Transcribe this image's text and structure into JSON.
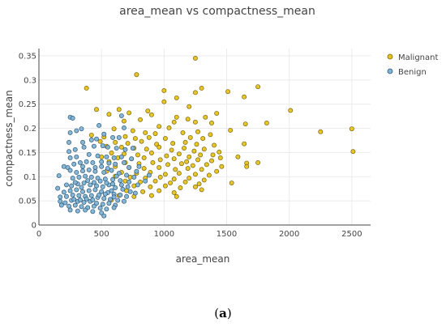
{
  "caption": {
    "open": "(",
    "letter": "a",
    "close": ")"
  },
  "chart_data": {
    "type": "scatter",
    "title": "area_mean vs compactness_mean",
    "xlabel": "area_mean",
    "ylabel": "compactness_mean",
    "xlim": [
      0,
      2650
    ],
    "ylim": [
      0,
      0.365
    ],
    "x_ticks": [
      0,
      500,
      1000,
      1500,
      2000,
      2500
    ],
    "x_tick_labels": [
      "0",
      "500",
      "1000",
      "1500",
      "2000",
      "2500"
    ],
    "y_ticks": [
      0,
      0.05,
      0.1,
      0.15,
      0.2,
      0.25,
      0.3,
      0.35
    ],
    "y_tick_labels": [
      "0",
      "0.05",
      "0.1",
      "0.15",
      "0.2",
      "0.25",
      "0.3",
      "0.35"
    ],
    "grid": true,
    "legend_position": "top-right",
    "series": [
      {
        "name": "Malignant",
        "color": "#e6c31e",
        "edge": "#7a6508",
        "points": [
          [
            1250,
            0.345
          ],
          [
            780,
            0.311
          ],
          [
            380,
            0.283
          ],
          [
            1750,
            0.286
          ],
          [
            1000,
            0.278
          ],
          [
            1300,
            0.283
          ],
          [
            1250,
            0.274
          ],
          [
            1510,
            0.276
          ],
          [
            1100,
            0.263
          ],
          [
            1640,
            0.265
          ],
          [
            1200,
            0.245
          ],
          [
            460,
            0.239
          ],
          [
            870,
            0.236
          ],
          [
            1000,
            0.255
          ],
          [
            2010,
            0.237
          ],
          [
            640,
            0.239
          ],
          [
            720,
            0.232
          ],
          [
            900,
            0.228
          ],
          [
            1330,
            0.223
          ],
          [
            1420,
            0.231
          ],
          [
            1100,
            0.223
          ],
          [
            560,
            0.229
          ],
          [
            680,
            0.215
          ],
          [
            810,
            0.218
          ],
          [
            1080,
            0.213
          ],
          [
            1190,
            0.219
          ],
          [
            1250,
            0.213
          ],
          [
            1380,
            0.211
          ],
          [
            1650,
            0.209
          ],
          [
            1820,
            0.211
          ],
          [
            960,
            0.204
          ],
          [
            1040,
            0.201
          ],
          [
            1530,
            0.196
          ],
          [
            2500,
            0.199
          ],
          [
            2250,
            0.193
          ],
          [
            600,
            0.199
          ],
          [
            750,
            0.195
          ],
          [
            850,
            0.191
          ],
          [
            930,
            0.189
          ],
          [
            1150,
            0.191
          ],
          [
            1270,
            0.193
          ],
          [
            1370,
            0.187
          ],
          [
            420,
            0.186
          ],
          [
            520,
            0.182
          ],
          [
            690,
            0.183
          ],
          [
            770,
            0.179
          ],
          [
            880,
            0.181
          ],
          [
            1010,
            0.179
          ],
          [
            1210,
            0.181
          ],
          [
            1310,
            0.179
          ],
          [
            1640,
            0.168
          ],
          [
            490,
            0.173
          ],
          [
            610,
            0.171
          ],
          [
            710,
            0.169
          ],
          [
            820,
            0.173
          ],
          [
            940,
            0.167
          ],
          [
            1070,
            0.169
          ],
          [
            1170,
            0.171
          ],
          [
            1260,
            0.167
          ],
          [
            1400,
            0.165
          ],
          [
            2510,
            0.152
          ],
          [
            540,
            0.163
          ],
          [
            660,
            0.161
          ],
          [
            760,
            0.159
          ],
          [
            860,
            0.157
          ],
          [
            960,
            0.161
          ],
          [
            1060,
            0.155
          ],
          [
            1160,
            0.159
          ],
          [
            1240,
            0.153
          ],
          [
            1320,
            0.157
          ],
          [
            1440,
            0.151
          ],
          [
            1390,
            0.145
          ],
          [
            580,
            0.149
          ],
          [
            680,
            0.147
          ],
          [
            790,
            0.145
          ],
          [
            900,
            0.149
          ],
          [
            1020,
            0.143
          ],
          [
            1120,
            0.147
          ],
          [
            1200,
            0.141
          ],
          [
            1290,
            0.145
          ],
          [
            1450,
            0.139
          ],
          [
            1590,
            0.141
          ],
          [
            500,
            0.141
          ],
          [
            630,
            0.139
          ],
          [
            740,
            0.137
          ],
          [
            840,
            0.139
          ],
          [
            970,
            0.135
          ],
          [
            1080,
            0.137
          ],
          [
            1180,
            0.131
          ],
          [
            1270,
            0.135
          ],
          [
            1380,
            0.133
          ],
          [
            1660,
            0.128
          ],
          [
            1750,
            0.129
          ],
          [
            560,
            0.131
          ],
          [
            690,
            0.129
          ],
          [
            800,
            0.127
          ],
          [
            910,
            0.129
          ],
          [
            1030,
            0.125
          ],
          [
            1140,
            0.127
          ],
          [
            1230,
            0.123
          ],
          [
            1340,
            0.125
          ],
          [
            1660,
            0.121
          ],
          [
            1460,
            0.121
          ],
          [
            610,
            0.121
          ],
          [
            720,
            0.119
          ],
          [
            840,
            0.117
          ],
          [
            960,
            0.119
          ],
          [
            1090,
            0.115
          ],
          [
            1190,
            0.117
          ],
          [
            1300,
            0.115
          ],
          [
            1420,
            0.111
          ],
          [
            540,
            0.111
          ],
          [
            660,
            0.109
          ],
          [
            780,
            0.107
          ],
          [
            890,
            0.109
          ],
          [
            1010,
            0.105
          ],
          [
            1120,
            0.107
          ],
          [
            1250,
            0.105
          ],
          [
            1360,
            0.103
          ],
          [
            610,
            0.101
          ],
          [
            730,
            0.099
          ],
          [
            850,
            0.097
          ],
          [
            970,
            0.099
          ],
          [
            1080,
            0.095
          ],
          [
            1200,
            0.097
          ],
          [
            1320,
            0.093
          ],
          [
            690,
            0.091
          ],
          [
            810,
            0.089
          ],
          [
            930,
            0.091
          ],
          [
            1050,
            0.087
          ],
          [
            1170,
            0.089
          ],
          [
            1280,
            0.085
          ],
          [
            1540,
            0.087
          ],
          [
            760,
            0.081
          ],
          [
            890,
            0.079
          ],
          [
            1010,
            0.081
          ],
          [
            1130,
            0.077
          ],
          [
            1250,
            0.079
          ],
          [
            700,
            0.071
          ],
          [
            830,
            0.069
          ],
          [
            960,
            0.071
          ],
          [
            1080,
            0.067
          ],
          [
            1300,
            0.073
          ],
          [
            900,
            0.061
          ],
          [
            1100,
            0.059
          ],
          [
            640,
            0.061
          ],
          [
            760,
            0.059
          ],
          [
            580,
            0.052
          ]
        ]
      },
      {
        "name": "Benign",
        "color": "#7fb3d5",
        "edge": "#2f5a78",
        "points": [
          [
            250,
            0.223
          ],
          [
            270,
            0.221
          ],
          [
            660,
            0.226
          ],
          [
            250,
            0.191
          ],
          [
            300,
            0.195
          ],
          [
            340,
            0.199
          ],
          [
            480,
            0.206
          ],
          [
            520,
            0.188
          ],
          [
            680,
            0.201
          ],
          [
            240,
            0.171
          ],
          [
            350,
            0.171
          ],
          [
            420,
            0.176
          ],
          [
            460,
            0.178
          ],
          [
            590,
            0.181
          ],
          [
            640,
            0.181
          ],
          [
            240,
            0.152
          ],
          [
            290,
            0.156
          ],
          [
            360,
            0.161
          ],
          [
            440,
            0.163
          ],
          [
            510,
            0.164
          ],
          [
            550,
            0.161
          ],
          [
            620,
            0.159
          ],
          [
            690,
            0.156
          ],
          [
            750,
            0.159
          ],
          [
            250,
            0.139
          ],
          [
            300,
            0.141
          ],
          [
            400,
            0.146
          ],
          [
            470,
            0.143
          ],
          [
            540,
            0.141
          ],
          [
            600,
            0.139
          ],
          [
            660,
            0.141
          ],
          [
            740,
            0.137
          ],
          [
            200,
            0.121
          ],
          [
            230,
            0.119
          ],
          [
            280,
            0.126
          ],
          [
            330,
            0.129
          ],
          [
            380,
            0.131
          ],
          [
            430,
            0.129
          ],
          [
            500,
            0.131
          ],
          [
            560,
            0.128
          ],
          [
            610,
            0.126
          ],
          [
            680,
            0.129
          ],
          [
            720,
            0.119
          ],
          [
            800,
            0.121
          ],
          [
            880,
            0.103
          ],
          [
            780,
            0.111
          ],
          [
            250,
            0.113
          ],
          [
            160,
            0.102
          ],
          [
            300,
            0.109
          ],
          [
            350,
            0.112
          ],
          [
            400,
            0.114
          ],
          [
            450,
            0.111
          ],
          [
            520,
            0.109
          ],
          [
            580,
            0.113
          ],
          [
            640,
            0.107
          ],
          [
            700,
            0.103
          ],
          [
            760,
            0.099
          ],
          [
            270,
            0.097
          ],
          [
            320,
            0.099
          ],
          [
            370,
            0.101
          ],
          [
            420,
            0.099
          ],
          [
            470,
            0.097
          ],
          [
            530,
            0.095
          ],
          [
            590,
            0.094
          ],
          [
            650,
            0.092
          ],
          [
            720,
            0.089
          ],
          [
            790,
            0.083
          ],
          [
            850,
            0.091
          ],
          [
            150,
            0.076
          ],
          [
            220,
            0.083
          ],
          [
            260,
            0.081
          ],
          [
            310,
            0.085
          ],
          [
            360,
            0.087
          ],
          [
            410,
            0.083
          ],
          [
            460,
            0.081
          ],
          [
            510,
            0.079
          ],
          [
            560,
            0.083
          ],
          [
            610,
            0.077
          ],
          [
            670,
            0.074
          ],
          [
            730,
            0.069
          ],
          [
            770,
            0.066
          ],
          [
            200,
            0.068
          ],
          [
            250,
            0.071
          ],
          [
            300,
            0.073
          ],
          [
            350,
            0.069
          ],
          [
            400,
            0.071
          ],
          [
            450,
            0.073
          ],
          [
            500,
            0.069
          ],
          [
            550,
            0.067
          ],
          [
            600,
            0.064
          ],
          [
            650,
            0.062
          ],
          [
            700,
            0.059
          ],
          [
            170,
            0.058
          ],
          [
            220,
            0.059
          ],
          [
            270,
            0.062
          ],
          [
            320,
            0.061
          ],
          [
            370,
            0.059
          ],
          [
            420,
            0.061
          ],
          [
            470,
            0.057
          ],
          [
            520,
            0.055
          ],
          [
            570,
            0.053
          ],
          [
            630,
            0.051
          ],
          [
            680,
            0.049
          ],
          [
            170,
            0.049
          ],
          [
            210,
            0.046
          ],
          [
            260,
            0.051
          ],
          [
            310,
            0.049
          ],
          [
            360,
            0.047
          ],
          [
            410,
            0.049
          ],
          [
            460,
            0.045
          ],
          [
            510,
            0.043
          ],
          [
            560,
            0.045
          ],
          [
            610,
            0.041
          ],
          [
            180,
            0.041
          ],
          [
            240,
            0.039
          ],
          [
            290,
            0.041
          ],
          [
            340,
            0.038
          ],
          [
            390,
            0.036
          ],
          [
            440,
            0.039
          ],
          [
            490,
            0.035
          ],
          [
            540,
            0.033
          ],
          [
            600,
            0.036
          ],
          [
            250,
            0.031
          ],
          [
            310,
            0.029
          ],
          [
            370,
            0.031
          ],
          [
            430,
            0.028
          ],
          [
            500,
            0.025
          ],
          [
            520,
            0.019
          ],
          [
            290,
            0.088
          ],
          [
            340,
            0.078
          ],
          [
            390,
            0.092
          ],
          [
            440,
            0.088
          ],
          [
            490,
            0.091
          ],
          [
            540,
            0.087
          ],
          [
            590,
            0.085
          ],
          [
            330,
            0.052
          ],
          [
            380,
            0.054
          ],
          [
            430,
            0.052
          ],
          [
            480,
            0.062
          ],
          [
            530,
            0.064
          ],
          [
            580,
            0.071
          ],
          [
            280,
            0.053
          ],
          [
            450,
            0.119
          ],
          [
            500,
            0.121
          ],
          [
            550,
            0.117
          ],
          [
            350,
            0.121
          ],
          [
            620,
            0.101
          ],
          [
            660,
            0.083
          ],
          [
            710,
            0.079
          ],
          [
            600,
            0.058
          ]
        ]
      }
    ]
  }
}
